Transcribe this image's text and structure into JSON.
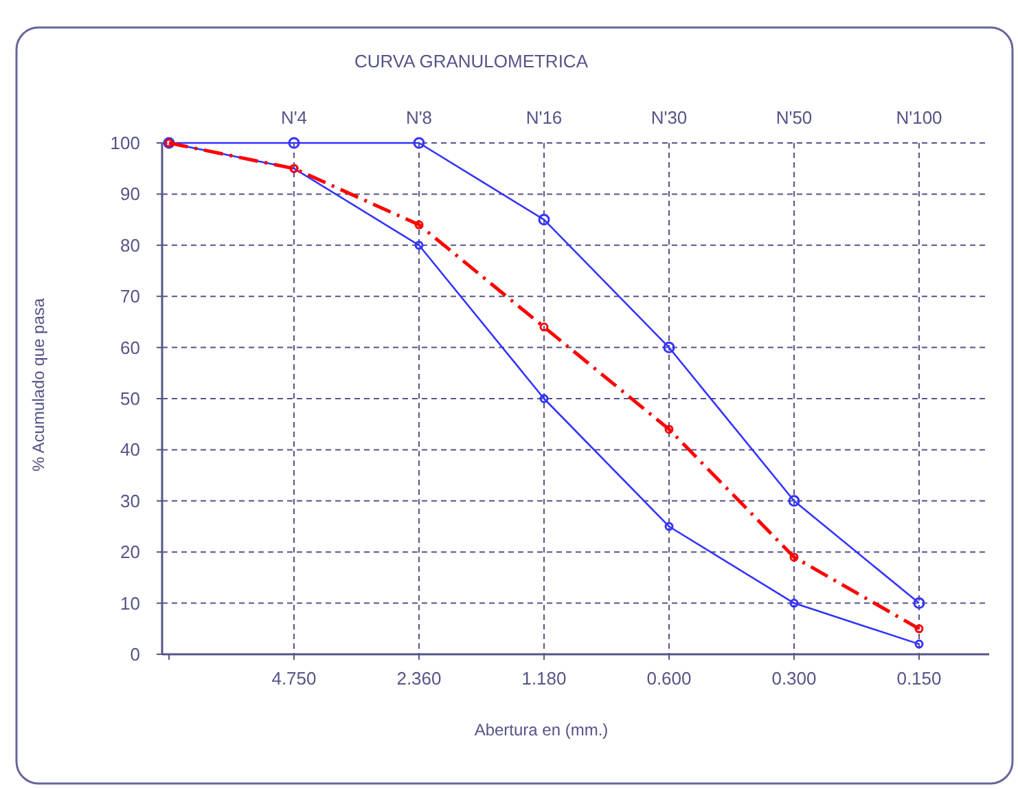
{
  "chart_data": {
    "type": "line",
    "title": "CURVA GRANULOMETRICA",
    "xlabel": "Abertura en (mm.)",
    "ylabel": "% Acumulado que pasa",
    "categories": [
      null,
      "4.750",
      "2.360",
      "1.180",
      "0.600",
      "0.300",
      "0.150"
    ],
    "series": [
      {
        "color": "#3333ff",
        "values": [
          100,
          100,
          100,
          85,
          60,
          30,
          10
        ],
        "line_style": "solid",
        "marker": "circle"
      },
      {
        "color": "#3333ff",
        "values": [
          100,
          95,
          80,
          50,
          25,
          10,
          2
        ],
        "line_style": "solid",
        "marker": "circle"
      },
      {
        "color": "#ff0000",
        "values": [
          100,
          95,
          84,
          64,
          44,
          19,
          5
        ],
        "line_style": "dashed",
        "marker": "circle"
      }
    ],
    "ylim": [
      0,
      100
    ],
    "yticks": [
      0,
      10,
      20,
      30,
      40,
      50,
      60,
      70,
      80,
      90,
      100
    ],
    "grid": true,
    "annotations": [
      "N'4",
      "N'8",
      "N'16",
      "N'30",
      "N'50",
      "N'100"
    ]
  }
}
